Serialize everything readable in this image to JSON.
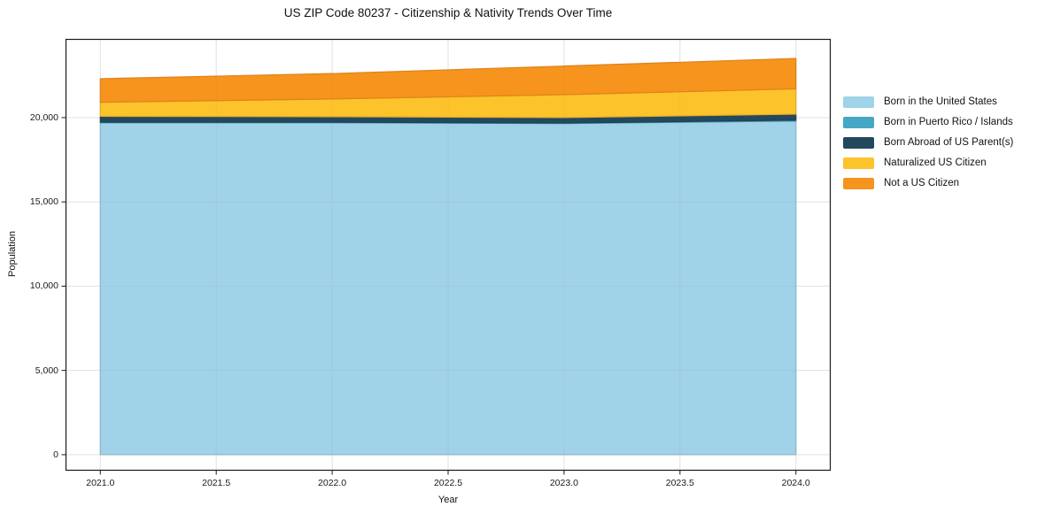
{
  "figure": {
    "background": "#ffffff",
    "frame_color": "#1a1a1a",
    "grid_color": "#e9e9e9"
  },
  "chart_data": {
    "type": "area",
    "stacked": true,
    "title": "US ZIP Code 80237 - Citizenship & Nativity Trends Over Time",
    "xlabel": "Year",
    "ylabel": "Population",
    "x": [
      2021,
      2022,
      2023,
      2024
    ],
    "series": [
      {
        "name": "Born in the United States",
        "color": "#A0D2E8",
        "values": [
          19700,
          19700,
          19650,
          19800
        ]
      },
      {
        "name": "Born in Puerto Rico / Islands",
        "color": "#45A7C6",
        "values": [
          30,
          30,
          30,
          50
        ]
      },
      {
        "name": "Born Abroad of US Parent(s)",
        "color": "#24485C",
        "values": [
          350,
          330,
          330,
          360
        ]
      },
      {
        "name": "Naturalized US Citizen",
        "color": "#FDC32B",
        "values": [
          830,
          1050,
          1350,
          1500
        ]
      },
      {
        "name": "Not a US Citizen",
        "color": "#F7941E",
        "values": [
          1400,
          1500,
          1700,
          1800
        ]
      }
    ],
    "totals": [
      22310,
      22610,
      23060,
      23510
    ],
    "xticks": [
      2021.0,
      2021.5,
      2022.0,
      2022.5,
      2023.0,
      2023.5,
      2024.0
    ],
    "xtick_labels": [
      "2021.0",
      "2021.5",
      "2022.0",
      "2022.5",
      "2023.0",
      "2023.5",
      "2024.0"
    ],
    "yticks": [
      0,
      5000,
      10000,
      15000,
      20000
    ],
    "ytick_labels": [
      "0",
      "5,000",
      "10,000",
      "15,000",
      "20,000"
    ],
    "xlim": [
      2020.85,
      2024.15
    ],
    "ylim": [
      -950,
      24670
    ],
    "grid": true,
    "legend_position": "right"
  }
}
